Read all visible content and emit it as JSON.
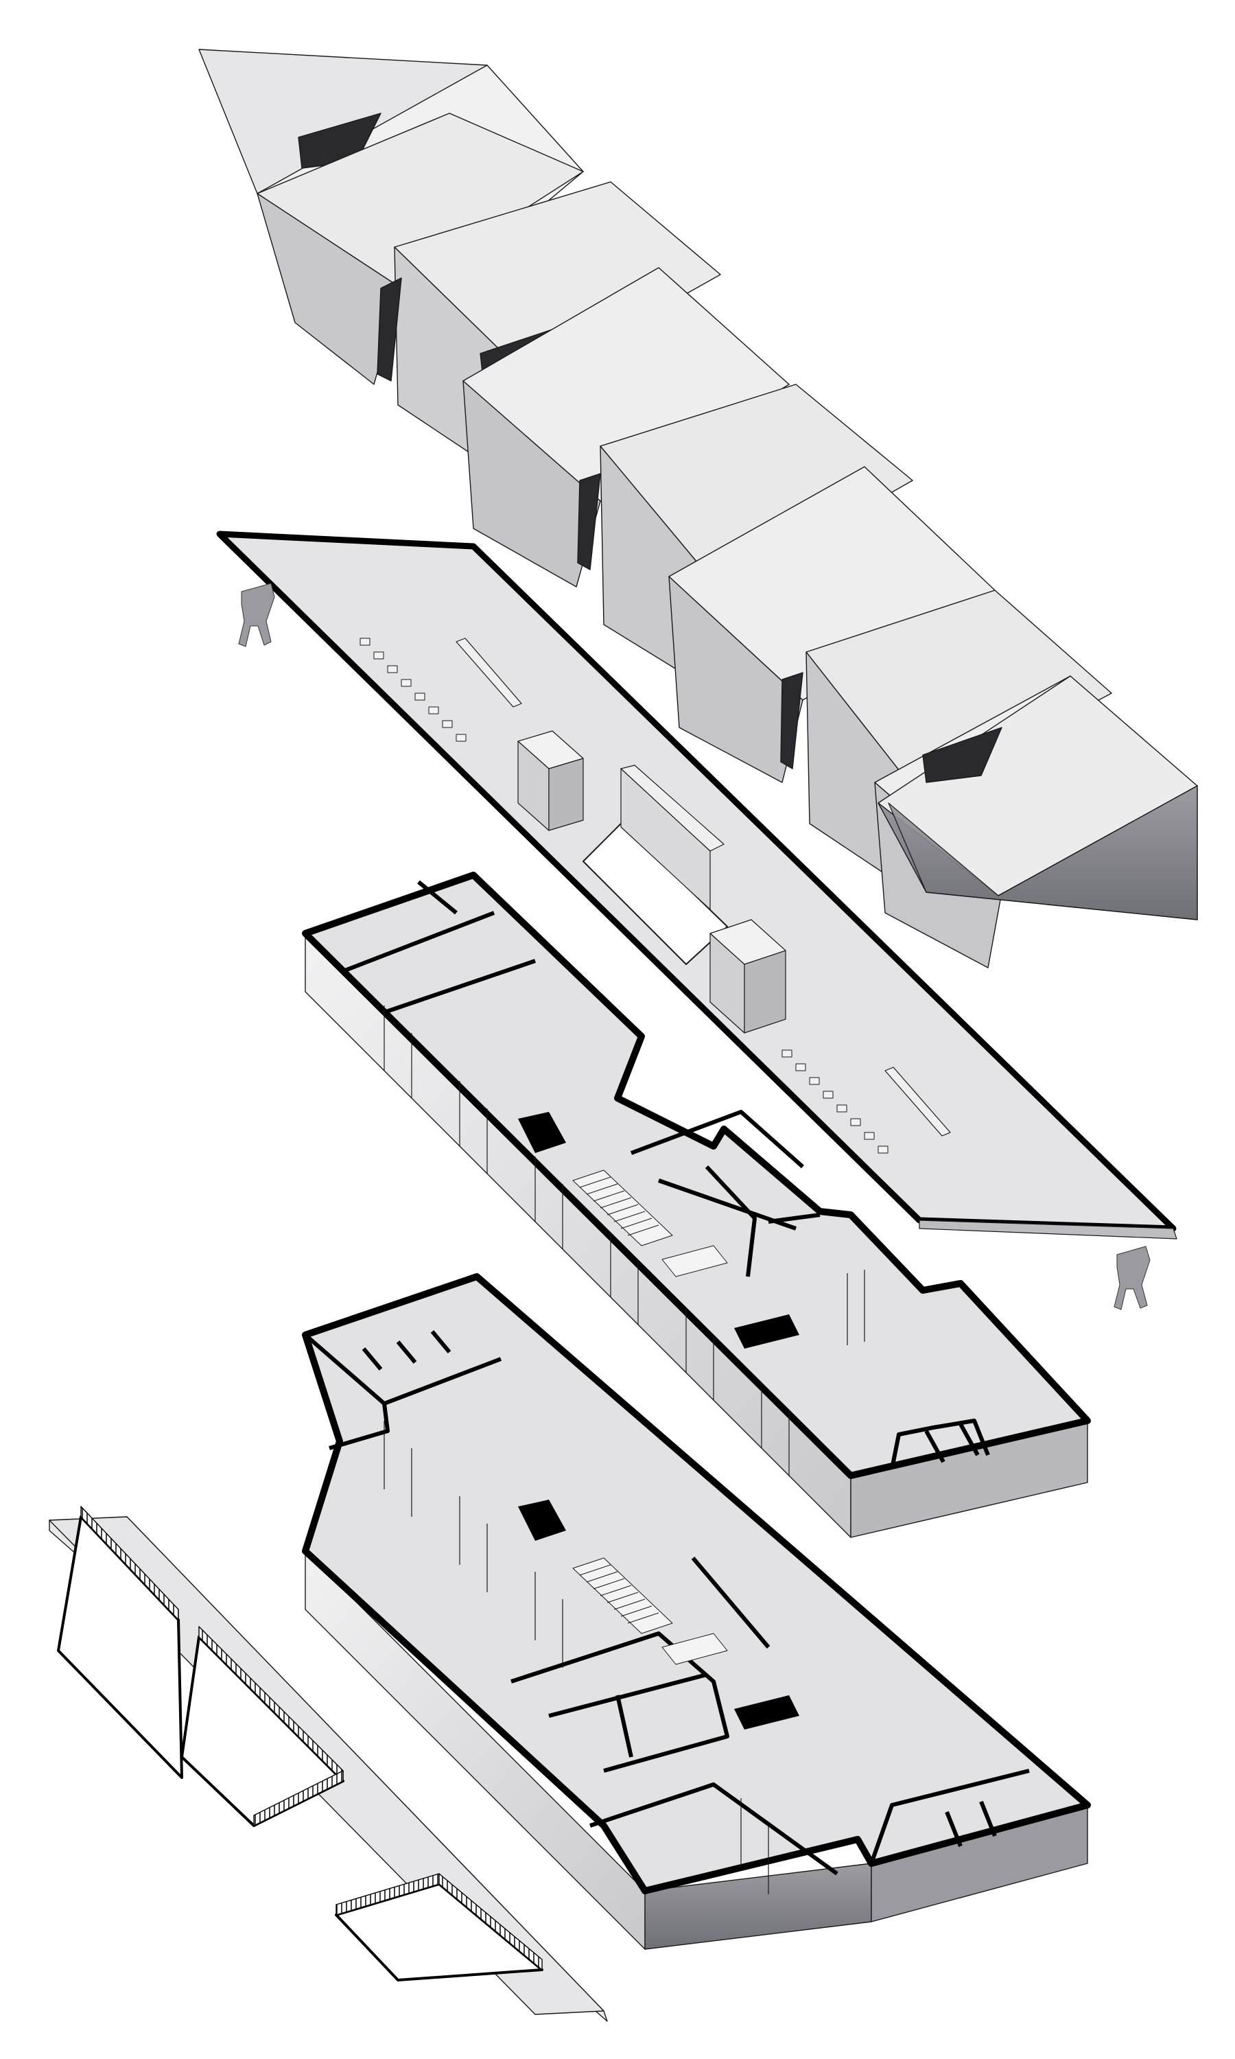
{
  "diagram": {
    "type": "exploded-axonometric",
    "layers": [
      {
        "id": "roof"
      },
      {
        "id": "roof-terrace"
      },
      {
        "id": "upper-floor"
      },
      {
        "id": "ground-floor"
      },
      {
        "id": "site-plinth"
      }
    ],
    "colors": {
      "background": "#ffffff",
      "wall_light": "#eeeeef",
      "wall_mid": "#d4d4d7",
      "wall_dark": "#8a8a90",
      "floor": "#e2e2e4",
      "cut": "#000000",
      "line": "#1a1a1a"
    }
  }
}
